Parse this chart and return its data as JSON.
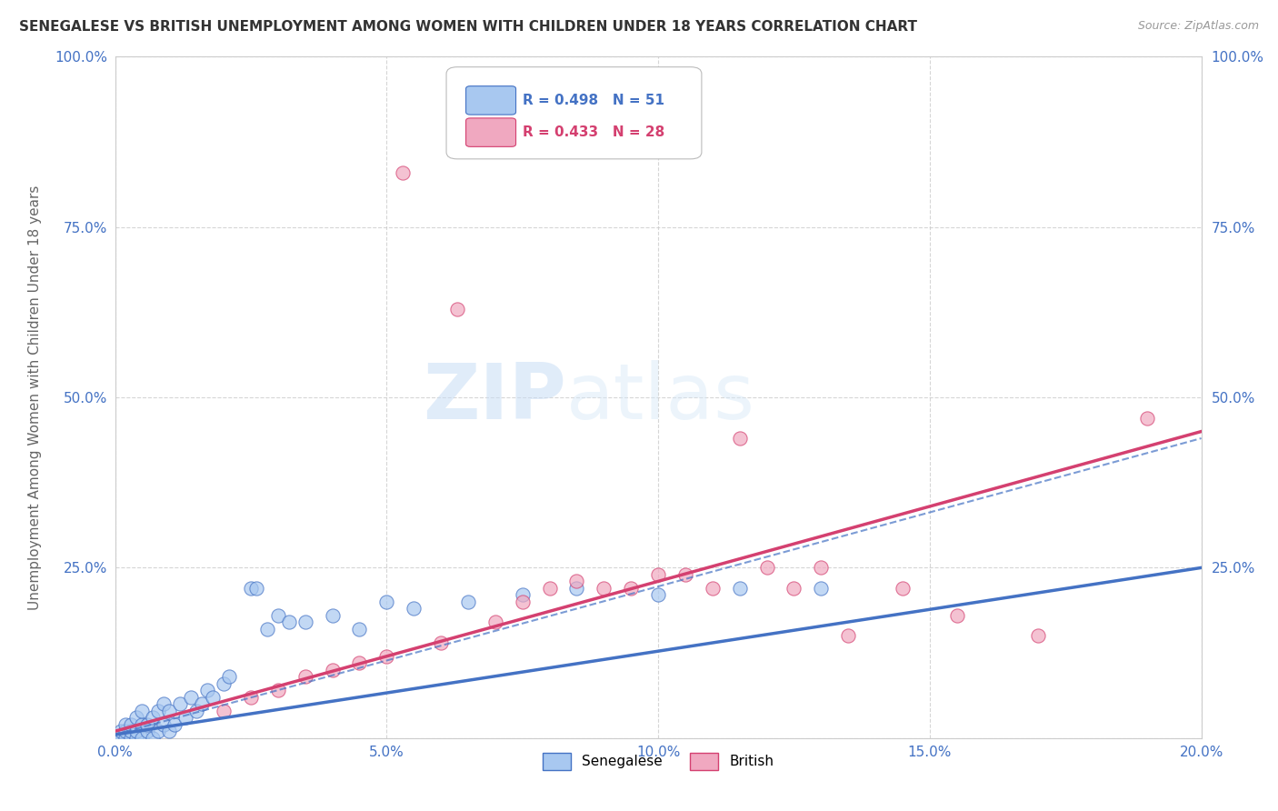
{
  "title": "SENEGALESE VS BRITISH UNEMPLOYMENT AMONG WOMEN WITH CHILDREN UNDER 18 YEARS CORRELATION CHART",
  "source": "Source: ZipAtlas.com",
  "ylabel": "Unemployment Among Women with Children Under 18 years",
  "xlim": [
    0.0,
    0.2
  ],
  "ylim": [
    0.0,
    1.0
  ],
  "xticks": [
    0.0,
    0.05,
    0.1,
    0.15,
    0.2
  ],
  "xtick_labels": [
    "0.0%",
    "5.0%",
    "10.0%",
    "15.0%",
    "20.0%"
  ],
  "yticks": [
    0.0,
    0.25,
    0.5,
    0.75,
    1.0
  ],
  "ytick_labels_left": [
    "",
    "25.0%",
    "50.0%",
    "75.0%",
    "100.0%"
  ],
  "ytick_labels_right": [
    "",
    "25.0%",
    "50.0%",
    "75.0%",
    "100.0%"
  ],
  "senegalese_color": "#a8c8f0",
  "british_color": "#f0a8c0",
  "senegalese_line_color": "#4472c4",
  "british_line_color": "#d44070",
  "senegalese_R": 0.498,
  "senegalese_N": 51,
  "british_R": 0.433,
  "british_N": 28,
  "watermark_zip": "ZIP",
  "watermark_atlas": "atlas",
  "background_color": "#ffffff",
  "senegalese_scatter": [
    [
      0.0,
      0.0
    ],
    [
      0.001,
      0.0
    ],
    [
      0.001,
      0.01
    ],
    [
      0.002,
      0.0
    ],
    [
      0.002,
      0.01
    ],
    [
      0.002,
      0.02
    ],
    [
      0.003,
      0.0
    ],
    [
      0.003,
      0.01
    ],
    [
      0.003,
      0.02
    ],
    [
      0.004,
      0.0
    ],
    [
      0.004,
      0.01
    ],
    [
      0.004,
      0.03
    ],
    [
      0.005,
      0.0
    ],
    [
      0.005,
      0.02
    ],
    [
      0.005,
      0.04
    ],
    [
      0.006,
      0.01
    ],
    [
      0.006,
      0.02
    ],
    [
      0.007,
      0.0
    ],
    [
      0.007,
      0.03
    ],
    [
      0.008,
      0.01
    ],
    [
      0.008,
      0.04
    ],
    [
      0.009,
      0.02
    ],
    [
      0.009,
      0.05
    ],
    [
      0.01,
      0.01
    ],
    [
      0.01,
      0.04
    ],
    [
      0.011,
      0.02
    ],
    [
      0.012,
      0.05
    ],
    [
      0.013,
      0.03
    ],
    [
      0.014,
      0.06
    ],
    [
      0.015,
      0.04
    ],
    [
      0.016,
      0.05
    ],
    [
      0.017,
      0.07
    ],
    [
      0.018,
      0.06
    ],
    [
      0.02,
      0.08
    ],
    [
      0.021,
      0.09
    ],
    [
      0.025,
      0.22
    ],
    [
      0.026,
      0.22
    ],
    [
      0.028,
      0.16
    ],
    [
      0.03,
      0.18
    ],
    [
      0.032,
      0.17
    ],
    [
      0.035,
      0.17
    ],
    [
      0.04,
      0.18
    ],
    [
      0.045,
      0.16
    ],
    [
      0.05,
      0.2
    ],
    [
      0.055,
      0.19
    ],
    [
      0.065,
      0.2
    ],
    [
      0.075,
      0.21
    ],
    [
      0.085,
      0.22
    ],
    [
      0.1,
      0.21
    ],
    [
      0.115,
      0.22
    ],
    [
      0.13,
      0.22
    ]
  ],
  "british_scatter": [
    [
      0.02,
      0.04
    ],
    [
      0.025,
      0.06
    ],
    [
      0.03,
      0.07
    ],
    [
      0.035,
      0.09
    ],
    [
      0.04,
      0.1
    ],
    [
      0.045,
      0.11
    ],
    [
      0.05,
      0.12
    ],
    [
      0.053,
      0.83
    ],
    [
      0.06,
      0.14
    ],
    [
      0.063,
      0.63
    ],
    [
      0.07,
      0.17
    ],
    [
      0.075,
      0.2
    ],
    [
      0.08,
      0.22
    ],
    [
      0.085,
      0.23
    ],
    [
      0.09,
      0.22
    ],
    [
      0.095,
      0.22
    ],
    [
      0.1,
      0.24
    ],
    [
      0.105,
      0.24
    ],
    [
      0.11,
      0.22
    ],
    [
      0.115,
      0.44
    ],
    [
      0.12,
      0.25
    ],
    [
      0.125,
      0.22
    ],
    [
      0.13,
      0.25
    ],
    [
      0.135,
      0.15
    ],
    [
      0.145,
      0.22
    ],
    [
      0.155,
      0.18
    ],
    [
      0.17,
      0.15
    ],
    [
      0.19,
      0.47
    ]
  ],
  "senegalese_line": [
    [
      0.0,
      0.005
    ],
    [
      0.2,
      0.25
    ]
  ],
  "senegalese_dashed_line": [
    [
      0.0,
      0.005
    ],
    [
      0.2,
      0.44
    ]
  ],
  "british_line": [
    [
      0.0,
      0.01
    ],
    [
      0.2,
      0.45
    ]
  ],
  "british_dashed_line": [
    [
      0.0,
      0.01
    ],
    [
      0.2,
      0.45
    ]
  ]
}
